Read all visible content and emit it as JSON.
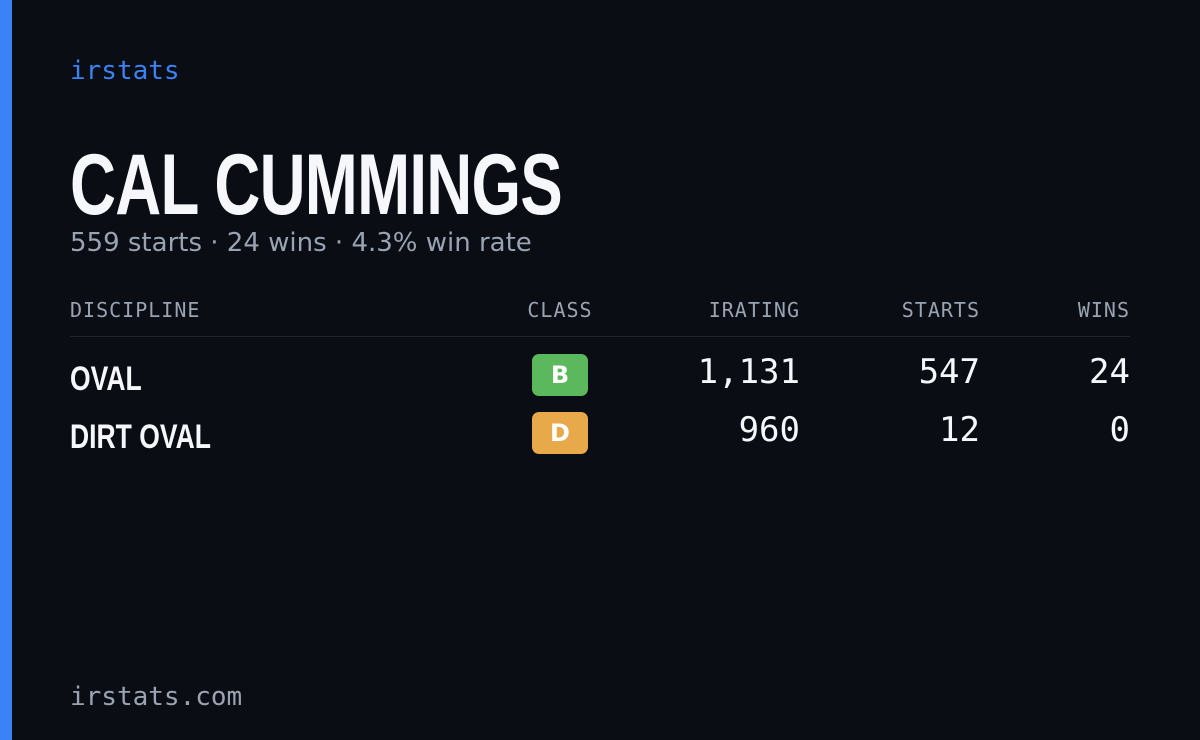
{
  "brand": "irstats",
  "driver": {
    "name": "CAL CUMMINGS",
    "summary": "559 starts · 24 wins · 4.3% win rate"
  },
  "table": {
    "headers": [
      "DISCIPLINE",
      "CLASS",
      "IRATING",
      "STARTS",
      "WINS"
    ],
    "rows": [
      {
        "discipline": "OVAL",
        "class": "B",
        "class_color": "#5cb85c",
        "irating": "1,131",
        "starts": "547",
        "wins": "24"
      },
      {
        "discipline": "DIRT OVAL",
        "class": "D",
        "class_color": "#e8a94a",
        "irating": "960",
        "starts": "12",
        "wins": "0"
      }
    ]
  },
  "footer": "irstats.com"
}
